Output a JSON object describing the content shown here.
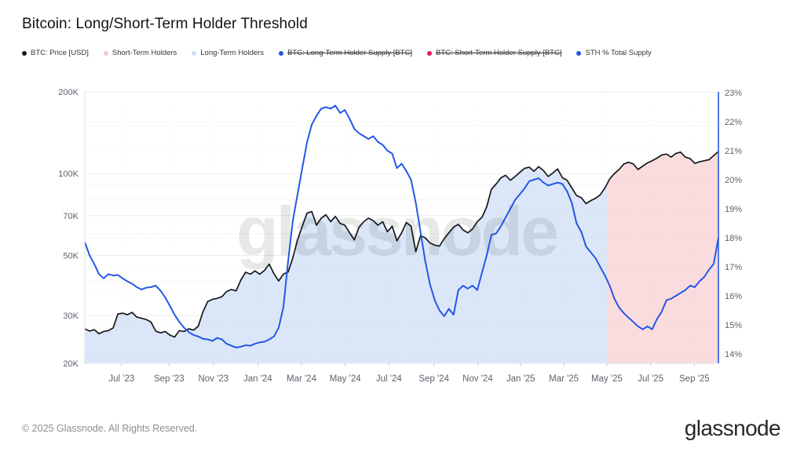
{
  "header": {
    "title": "Bitcoin: Long/Short-Term Holder Threshold"
  },
  "legend": {
    "items": [
      {
        "label": "BTC: Price [USD]",
        "color": "#17181b",
        "strike": false
      },
      {
        "label": "Short-Term Holders",
        "color": "#f6c9ce",
        "strike": false
      },
      {
        "label": "Long-Term Holders",
        "color": "#cadef7",
        "strike": false
      },
      {
        "label": "BTC: Long-Term Holder Supply [BTC]",
        "color": "#2457e5",
        "strike": true
      },
      {
        "label": "BTC: Short-Term Holder Supply [BTC]",
        "color": "#e8175d",
        "strike": true
      },
      {
        "label": "STH % Total Supply",
        "color": "#2457e5",
        "strike": false
      }
    ]
  },
  "watermark": {
    "text": "glassnode"
  },
  "footer": {
    "copyright": "© 2025 Glassnode. All Rights Reserved.",
    "logo": "glassnode"
  },
  "chart_data": {
    "type": "line",
    "title": "Bitcoin: Long/Short-Term Holder Threshold",
    "left_axis": {
      "scale": "log",
      "unit": "USD",
      "range_k": [
        20,
        200
      ],
      "ticks_k": [
        200,
        100,
        70,
        50,
        30,
        20
      ],
      "tick_labels": [
        "200K",
        "100K",
        "70K",
        "50K",
        "30K",
        "20K"
      ],
      "minor_ticks_k": [
        150,
        90,
        80,
        60,
        40
      ]
    },
    "right_axis": {
      "scale": "linear",
      "unit": "%",
      "range": [
        14,
        23
      ],
      "ticks": [
        23,
        22,
        21,
        20,
        19,
        18,
        17,
        16,
        15,
        14
      ],
      "tick_labels": [
        "23%",
        "22%",
        "21%",
        "20%",
        "19%",
        "18%",
        "17%",
        "16%",
        "15%",
        "14%"
      ]
    },
    "x_axis": {
      "ticks": [
        {
          "label": "Jul '23",
          "f": 0.058
        },
        {
          "label": "Sep '23",
          "f": 0.133
        },
        {
          "label": "Nov '23",
          "f": 0.203
        },
        {
          "label": "Jan '24",
          "f": 0.273
        },
        {
          "label": "Mar '24",
          "f": 0.342
        },
        {
          "label": "May '24",
          "f": 0.411
        },
        {
          "label": "Jul '24",
          "f": 0.48
        },
        {
          "label": "Sep '24",
          "f": 0.551
        },
        {
          "label": "Nov '24",
          "f": 0.62
        },
        {
          "label": "Jan '25",
          "f": 0.688
        },
        {
          "label": "Mar '25",
          "f": 0.756
        },
        {
          "label": "May '25",
          "f": 0.824
        },
        {
          "label": "Jul '25",
          "f": 0.893
        },
        {
          "label": "Sep '25",
          "f": 0.962
        }
      ]
    },
    "regions": [
      {
        "name": "Long-Term Holders",
        "from": 0.0,
        "to": 0.824,
        "color": "#dbe7f8"
      },
      {
        "name": "Short-Term Holders",
        "from": 0.824,
        "to": 1.0,
        "color": "#fadcdf"
      }
    ],
    "end_marker_color": "#2457e5",
    "series": [
      {
        "name": "BTC: Price [USD]",
        "axis": "left",
        "unit": "K USD",
        "color": "#17181b",
        "values": [
          26.8,
          26.3,
          26.6,
          25.7,
          26.2,
          26.4,
          27.0,
          30.4,
          30.6,
          30.2,
          30.8,
          29.6,
          29.3,
          29.0,
          28.4,
          26.3,
          25.9,
          26.2,
          25.4,
          25.0,
          26.4,
          26.2,
          26.8,
          26.5,
          27.4,
          31.0,
          33.8,
          34.4,
          34.7,
          35.2,
          36.8,
          37.4,
          37.0,
          40.5,
          43.3,
          42.6,
          43.8,
          42.6,
          44.0,
          46.4,
          42.8,
          40.2,
          42.6,
          43.4,
          49.0,
          57.0,
          64.0,
          71.5,
          72.5,
          64.5,
          68.5,
          70.5,
          66.5,
          69.5,
          65.5,
          64.5,
          60.5,
          57.0,
          63.5,
          66.5,
          68.5,
          67.0,
          64.5,
          66.5,
          61.0,
          64.0,
          56.5,
          60.5,
          66.0,
          64.0,
          51.5,
          59.0,
          58.0,
          55.5,
          54.5,
          54.0,
          57.5,
          60.5,
          63.5,
          65.0,
          62.0,
          60.5,
          62.5,
          66.5,
          69.0,
          75.5,
          87.5,
          91.5,
          96.5,
          98.5,
          94.5,
          97.5,
          101.0,
          104.5,
          105.5,
          102.0,
          106.0,
          102.5,
          97.5,
          100.5,
          104.0,
          96.5,
          94.5,
          88.5,
          83.0,
          81.5,
          77.5,
          79.5,
          81.0,
          83.5,
          88.5,
          95.5,
          100.0,
          103.5,
          108.5,
          110.0,
          108.5,
          103.5,
          106.5,
          109.5,
          111.5,
          114.0,
          117.0,
          118.0,
          115.0,
          118.5,
          120.0,
          115.0,
          113.5,
          109.0,
          110.5,
          111.5,
          112.5,
          116.5,
          120.5
        ]
      },
      {
        "name": "STH % Total Supply",
        "axis": "right",
        "unit": "%",
        "color": "#2457e5",
        "values": [
          17.85,
          17.4,
          17.1,
          16.75,
          16.6,
          16.75,
          16.7,
          16.72,
          16.6,
          16.5,
          16.42,
          16.3,
          16.22,
          16.28,
          16.3,
          16.35,
          16.18,
          15.95,
          15.65,
          15.35,
          15.1,
          14.9,
          14.75,
          14.65,
          14.6,
          14.52,
          14.5,
          14.45,
          14.55,
          14.5,
          14.35,
          14.28,
          14.22,
          14.25,
          14.3,
          14.28,
          14.35,
          14.4,
          14.42,
          14.5,
          14.6,
          14.9,
          15.6,
          17.2,
          18.6,
          19.5,
          20.4,
          21.3,
          21.9,
          22.2,
          22.45,
          22.5,
          22.45,
          22.55,
          22.3,
          22.4,
          22.1,
          21.75,
          21.6,
          21.5,
          21.4,
          21.5,
          21.3,
          21.2,
          21.0,
          20.9,
          20.4,
          20.55,
          20.3,
          20.0,
          19.2,
          18.2,
          17.2,
          16.4,
          15.85,
          15.5,
          15.3,
          15.55,
          15.35,
          16.2,
          16.35,
          16.25,
          16.35,
          16.2,
          16.8,
          17.4,
          18.1,
          18.15,
          18.4,
          18.7,
          19.0,
          19.3,
          19.5,
          19.7,
          19.95,
          20.0,
          20.05,
          19.9,
          19.8,
          19.85,
          19.9,
          19.85,
          19.6,
          19.2,
          18.5,
          18.2,
          17.7,
          17.5,
          17.3,
          17.0,
          16.7,
          16.35,
          15.9,
          15.6,
          15.4,
          15.25,
          15.1,
          14.95,
          14.85,
          14.95,
          14.85,
          15.2,
          15.45,
          15.85,
          15.9,
          16.0,
          16.1,
          16.2,
          16.35,
          16.3,
          16.5,
          16.65,
          16.9,
          17.1,
          18.0
        ]
      }
    ]
  }
}
